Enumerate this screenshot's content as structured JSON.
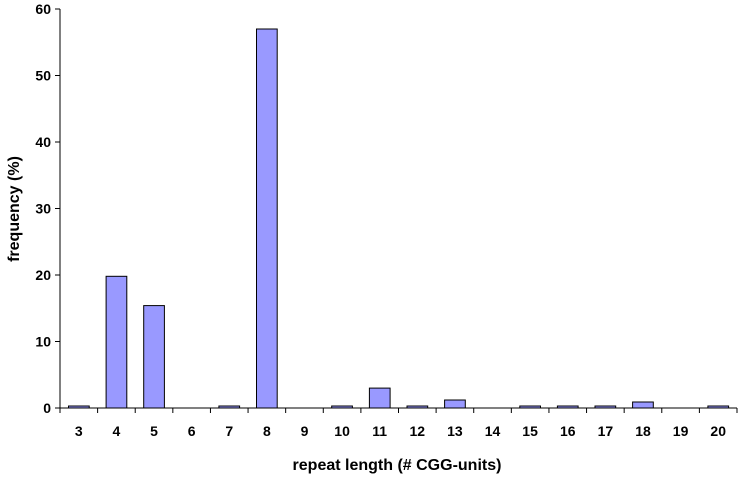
{
  "chart_data": {
    "type": "bar",
    "xlabel": "repeat length (# CGG-units)",
    "ylabel": "frequency (%)",
    "categories": [
      "3",
      "4",
      "5",
      "6",
      "7",
      "8",
      "9",
      "10",
      "11",
      "12",
      "13",
      "14",
      "15",
      "16",
      "17",
      "18",
      "19",
      "20"
    ],
    "values": [
      0.3,
      19.8,
      15.4,
      0,
      0.3,
      57,
      0,
      0.3,
      3.0,
      0.3,
      1.2,
      0,
      0.3,
      0.3,
      0.3,
      0.9,
      0,
      0.3
    ],
    "ylim": [
      0,
      60
    ],
    "yticks": [
      0,
      10,
      20,
      30,
      40,
      50,
      60
    ],
    "grid": false,
    "bar_color": "#9999ff",
    "bar_edge_color": "#000000"
  }
}
